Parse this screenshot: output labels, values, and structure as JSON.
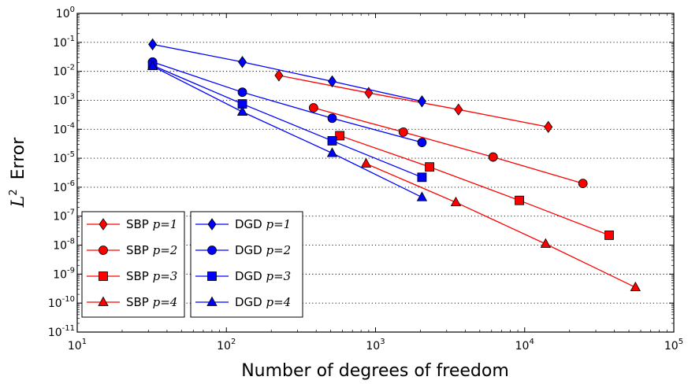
{
  "chart_data": {
    "type": "line",
    "xscale": "log",
    "yscale": "log",
    "xlabel": "Number of degrees of freedom",
    "ylabel": "Error",
    "ylabel_math": "L",
    "ylabel_sup": "2",
    "xlim": [
      10,
      100000
    ],
    "ylim": [
      1e-11,
      1
    ],
    "grid": "horizontal dotted",
    "xticks": [
      {
        "base": "10",
        "exp": "1",
        "value": 10
      },
      {
        "base": "10",
        "exp": "2",
        "value": 100
      },
      {
        "base": "10",
        "exp": "3",
        "value": 1000
      },
      {
        "base": "10",
        "exp": "4",
        "value": 10000
      },
      {
        "base": "10",
        "exp": "5",
        "value": 100000
      }
    ],
    "yticks": [
      {
        "base": "10",
        "exp": "0",
        "value": 1
      },
      {
        "base": "10",
        "exp": "-1",
        "value": 0.1
      },
      {
        "base": "10",
        "exp": "-2",
        "value": 0.01
      },
      {
        "base": "10",
        "exp": "-3",
        "value": 0.001
      },
      {
        "base": "10",
        "exp": "-4",
        "value": 0.0001
      },
      {
        "base": "10",
        "exp": "-5",
        "value": 1e-05
      },
      {
        "base": "10",
        "exp": "-6",
        "value": 1e-06
      },
      {
        "base": "10",
        "exp": "-7",
        "value": 1e-07
      },
      {
        "base": "10",
        "exp": "-8",
        "value": 1e-08
      },
      {
        "base": "10",
        "exp": "-9",
        "value": 1e-09
      },
      {
        "base": "10",
        "exp": "-10",
        "value": 1e-10
      },
      {
        "base": "10",
        "exp": "-11",
        "value": 1e-11
      }
    ],
    "series": [
      {
        "name": "SBP p=1",
        "label_text": "SBP",
        "label_math": "p=1",
        "color": "#ff0000",
        "marker": "diamond",
        "x": [
          225,
          900,
          3600,
          14400
        ],
        "y": [
          0.0072,
          0.0018,
          0.00048,
          0.00012
        ]
      },
      {
        "name": "SBP p=2",
        "label_text": "SBP",
        "label_math": "p=2",
        "color": "#ff0000",
        "marker": "circle",
        "x": [
          384,
          1536,
          6144,
          24576
        ],
        "y": [
          0.00055,
          8e-05,
          1.1e-05,
          1.35e-06
        ]
      },
      {
        "name": "SBP p=3",
        "label_text": "SBP",
        "label_math": "p=3",
        "color": "#ff0000",
        "marker": "square",
        "x": [
          576,
          2304,
          9216,
          36864
        ],
        "y": [
          6e-05,
          5e-06,
          3.5e-07,
          2.2e-08
        ]
      },
      {
        "name": "SBP p=4",
        "label_text": "SBP",
        "label_math": "p=4",
        "color": "#ff0000",
        "marker": "triangle",
        "x": [
          864,
          3456,
          13824,
          55296
        ],
        "y": [
          6.5e-06,
          3e-07,
          1.1e-08,
          3.5e-10
        ]
      },
      {
        "name": "DGD p=1",
        "label_text": "DGD",
        "label_math": "p=1",
        "color": "#0000ff",
        "marker": "diamond",
        "x": [
          32,
          128,
          512,
          2048
        ],
        "y": [
          0.085,
          0.021,
          0.0045,
          0.00092
        ]
      },
      {
        "name": "DGD p=2",
        "label_text": "DGD",
        "label_math": "p=2",
        "color": "#0000ff",
        "marker": "circle",
        "x": [
          32,
          128,
          512,
          2048
        ],
        "y": [
          0.021,
          0.0019,
          0.00024,
          3.5e-05
        ]
      },
      {
        "name": "DGD p=3",
        "label_text": "DGD",
        "label_math": "p=3",
        "color": "#0000ff",
        "marker": "square",
        "x": [
          32,
          128,
          512,
          2048
        ],
        "y": [
          0.016,
          0.00075,
          4e-05,
          2.2e-06
        ]
      },
      {
        "name": "DGD p=4",
        "label_text": "DGD",
        "label_math": "p=4",
        "color": "#0000ff",
        "marker": "triangle",
        "x": [
          32,
          128,
          512,
          2048
        ],
        "y": [
          0.015,
          0.0004,
          1.5e-05,
          4.5e-07
        ]
      }
    ],
    "legend": [
      {
        "placement": "lower-left",
        "series": [
          0,
          1,
          2,
          3
        ]
      },
      {
        "placement": "lower-left-center",
        "series": [
          4,
          5,
          6,
          7
        ]
      }
    ]
  }
}
